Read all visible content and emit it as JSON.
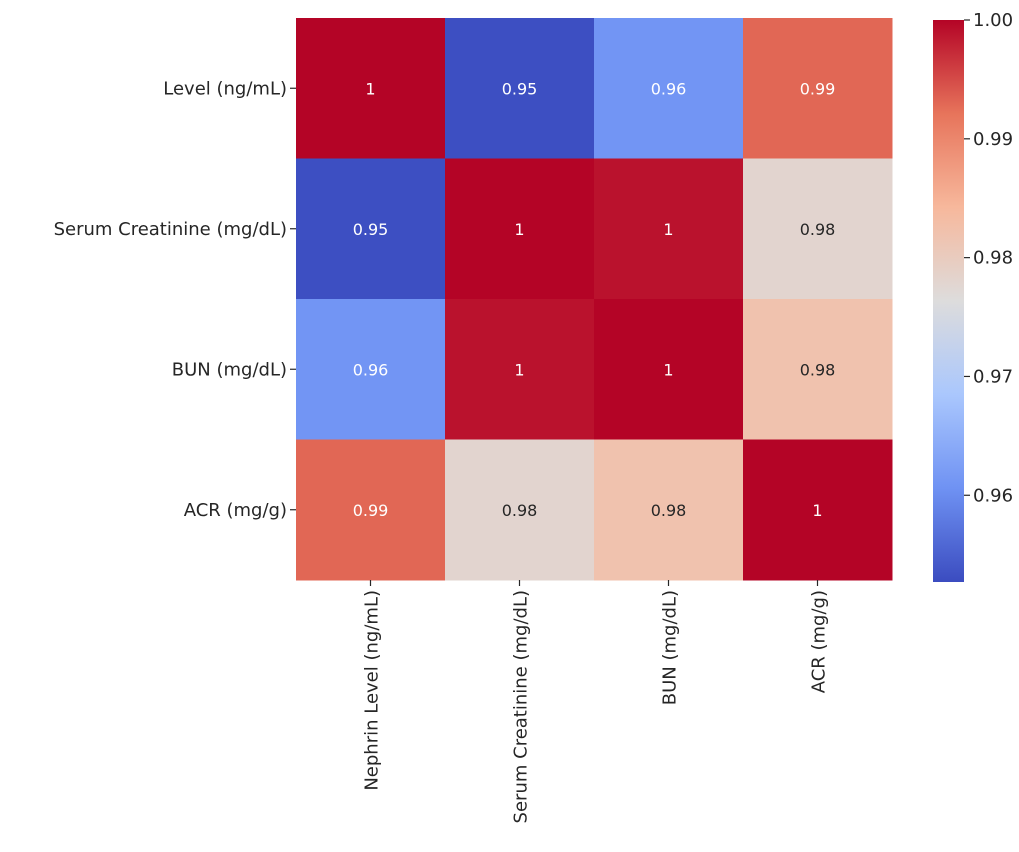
{
  "chart_data": {
    "type": "heatmap",
    "title": "",
    "xlabel": "",
    "ylabel": "",
    "y_tick_labels": [
      "Level (ng/mL)",
      "Serum Creatinine (mg/dL)",
      "BUN (mg/dL)",
      "ACR (mg/g)"
    ],
    "x_tick_labels": [
      "Nephrin Level (ng/mL)",
      "Serum Creatinine (mg/dL)",
      "BUN (mg/dL)",
      "ACR (mg/g)"
    ],
    "values": [
      [
        1.0,
        0.953,
        0.961,
        0.993
      ],
      [
        0.953,
        1.0,
        0.999,
        0.978
      ],
      [
        0.961,
        0.999,
        1.0,
        0.982
      ],
      [
        0.993,
        0.978,
        0.982,
        1.0
      ]
    ],
    "annotations": [
      [
        "1",
        "0.95",
        "0.96",
        "0.99"
      ],
      [
        "0.95",
        "1",
        "1",
        "0.98"
      ],
      [
        "0.96",
        "1",
        "1",
        "0.98"
      ],
      [
        "0.99",
        "0.98",
        "0.98",
        "1"
      ]
    ],
    "colormap": "coolwarm",
    "colormap_stops": [
      "#3b4cc0",
      "#6f92f3",
      "#aac7fd",
      "#dddcdc",
      "#f7b89c",
      "#e7745b",
      "#b40426"
    ],
    "colorbar_range": [
      0.9527,
      1.0
    ],
    "colorbar_ticks": [
      {
        "value": 0.96,
        "label": "0.96"
      },
      {
        "value": 0.97,
        "label": "0.97"
      },
      {
        "value": 0.98,
        "label": "0.98"
      },
      {
        "value": 0.99,
        "label": "0.99"
      },
      {
        "value": 1.0,
        "label": "1.00"
      }
    ]
  }
}
